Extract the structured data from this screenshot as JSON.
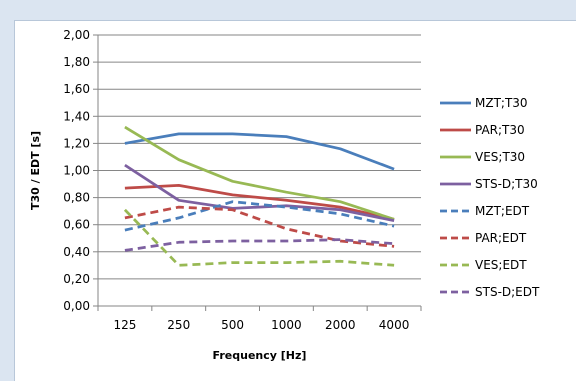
{
  "chart_data": {
    "type": "line",
    "title": "",
    "xlabel": "Frequency [Hz]",
    "ylabel": "T30 / EDT [s]",
    "categories": [
      "125",
      "250",
      "500",
      "1000",
      "2000",
      "4000"
    ],
    "yticks": [
      "0,00",
      "0,20",
      "0,40",
      "0,60",
      "0,80",
      "1,00",
      "1,20",
      "1,40",
      "1,60",
      "1,80",
      "2,00"
    ],
    "ylim": [
      0,
      2
    ],
    "grid": true,
    "legend_position": "right",
    "series": [
      {
        "name": "MZT;T30",
        "color": "#4a7ebb",
        "dashed": false,
        "values": [
          1.2,
          1.27,
          1.27,
          1.25,
          1.16,
          1.01
        ]
      },
      {
        "name": "PAR;T30",
        "color": "#be4b48",
        "dashed": false,
        "values": [
          0.87,
          0.89,
          0.82,
          0.78,
          0.73,
          0.64
        ]
      },
      {
        "name": "VES;T30",
        "color": "#98b954",
        "dashed": false,
        "values": [
          1.32,
          1.08,
          0.92,
          0.84,
          0.77,
          0.64
        ]
      },
      {
        "name": "STS-D;T30",
        "color": "#7d60a0",
        "dashed": false,
        "values": [
          1.04,
          0.78,
          0.72,
          0.74,
          0.71,
          0.63
        ]
      },
      {
        "name": "MZT;EDT",
        "color": "#4a7ebb",
        "dashed": true,
        "values": [
          0.56,
          0.65,
          0.77,
          0.73,
          0.68,
          0.59
        ]
      },
      {
        "name": "PAR;EDT",
        "color": "#be4b48",
        "dashed": true,
        "values": [
          0.65,
          0.73,
          0.71,
          0.57,
          0.48,
          0.44
        ]
      },
      {
        "name": "VES;EDT",
        "color": "#98b954",
        "dashed": true,
        "values": [
          0.71,
          0.3,
          0.32,
          0.32,
          0.33,
          0.3
        ]
      },
      {
        "name": "STS-D;EDT",
        "color": "#7d60a0",
        "dashed": true,
        "values": [
          0.41,
          0.47,
          0.48,
          0.48,
          0.49,
          0.46
        ]
      }
    ]
  }
}
